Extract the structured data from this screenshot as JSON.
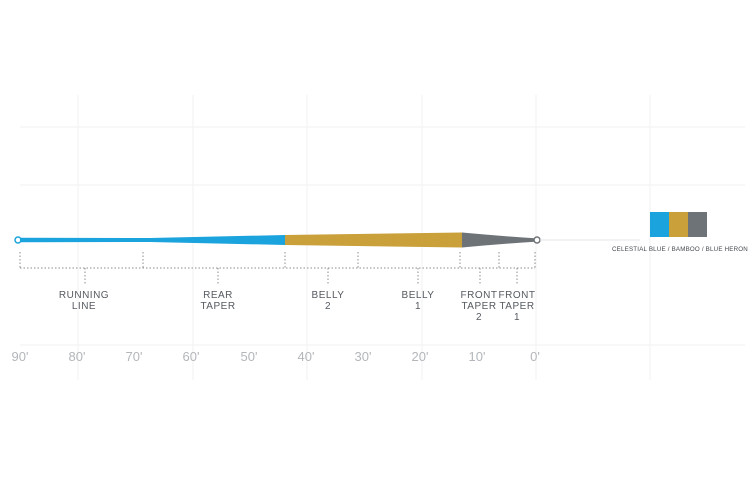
{
  "sections": [
    {
      "id": "running-line",
      "lines": [
        "RUNNING",
        "LINE"
      ]
    },
    {
      "id": "rear-taper",
      "lines": [
        "REAR",
        "TAPER"
      ]
    },
    {
      "id": "belly-2",
      "lines": [
        "BELLY",
        "2"
      ]
    },
    {
      "id": "belly-1",
      "lines": [
        "BELLY",
        "1"
      ]
    },
    {
      "id": "front-taper-2",
      "lines": [
        "FRONT",
        "TAPER",
        "2"
      ]
    },
    {
      "id": "front-taper-1",
      "lines": [
        "FRONT",
        "TAPER",
        "1"
      ]
    }
  ],
  "axis_labels": [
    "90'",
    "80'",
    "70'",
    "60'",
    "50'",
    "40'",
    "30'",
    "20'",
    "10'",
    "0'"
  ],
  "colors": {
    "celestial_blue": "#1ba3dd",
    "bamboo": "#c9a03a",
    "blue_heron": "#6e7378"
  },
  "colorway": {
    "label": "CELESTIAL BLUE / BAMBOO / BLUE HERON"
  }
}
